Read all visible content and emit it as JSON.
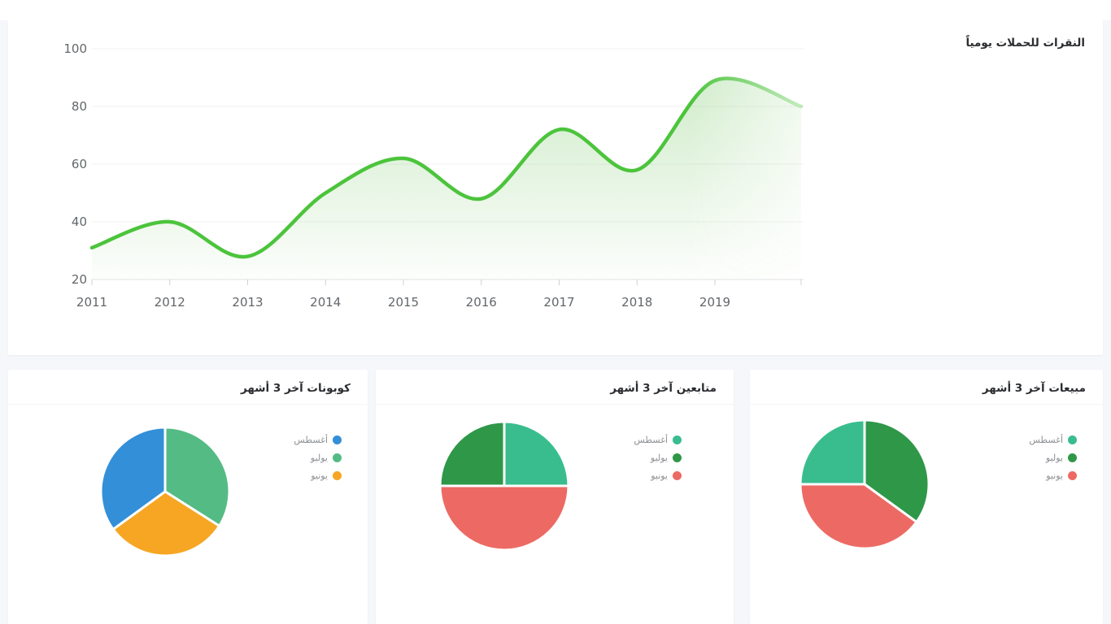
{
  "page": {
    "direction": "rtl",
    "background": "#f6f7fa",
    "card_background": "#ffffff"
  },
  "chart_data": [
    {
      "type": "line",
      "title": "النقرات للحملات يومياً",
      "x": [
        "2011",
        "2012",
        "2013",
        "2014",
        "2015",
        "2016",
        "2017",
        "2018",
        "2019"
      ],
      "values": [
        31,
        40,
        28,
        50,
        62,
        48,
        72,
        58,
        89
      ],
      "unlabeled_end_value": 80,
      "xlabel": "",
      "ylabel": "",
      "ylim": [
        20,
        100
      ],
      "yticks": [
        20,
        40,
        60,
        80,
        100
      ],
      "grid": true,
      "legend": "none",
      "style": {
        "line_color": "#4cc43c",
        "area_fill_top": "rgba(100,192,80,0.30)",
        "area_fill_bottom": "rgba(100,192,80,0.02)",
        "right_edge_fade": true,
        "grid_color": "#f1f2f3",
        "axis_line_color": "#e2e3e5",
        "tick_color": "#cfd1d4",
        "tick_label_color": "#63676b"
      }
    },
    {
      "type": "pie",
      "id": "coupons",
      "title": "كوبونات آخر 3 أشهر",
      "legend_position": "right",
      "legend": [
        {
          "label": "أغسطس",
          "color": "#338fd8"
        },
        {
          "label": "يوليو",
          "color": "#54bb84"
        },
        {
          "label": "يونيو",
          "color": "#f6a623"
        }
      ],
      "slices_clockwise_from_top": [
        {
          "label": "يوليو",
          "value": 34,
          "color": "#54bb84"
        },
        {
          "label": "يونيو",
          "value": 31,
          "color": "#f6a623"
        },
        {
          "label": "أغسطس",
          "value": 35,
          "color": "#338fd8"
        }
      ]
    },
    {
      "type": "pie",
      "id": "followers",
      "title": "متابعين آخر 3 أشهر",
      "legend_position": "right",
      "legend": [
        {
          "label": "أغسطس",
          "color": "#39bd8e"
        },
        {
          "label": "يوليو",
          "color": "#2f9748"
        },
        {
          "label": "يونيو",
          "color": "#ed6a64"
        }
      ],
      "slices_clockwise_from_top": [
        {
          "label": "أغسطس",
          "value": 25,
          "color": "#39bd8e"
        },
        {
          "label": "يونيو",
          "value": 50,
          "color": "#ed6a64"
        },
        {
          "label": "يوليو",
          "value": 25,
          "color": "#2f9748"
        }
      ]
    },
    {
      "type": "pie",
      "id": "sales",
      "title": "مبيعات آخر 3 أشهر",
      "legend_position": "right",
      "legend": [
        {
          "label": "أغسطس",
          "color": "#39bd8e"
        },
        {
          "label": "يوليو",
          "color": "#2f9748"
        },
        {
          "label": "يونيو",
          "color": "#ed6a64"
        }
      ],
      "slices_clockwise_from_top": [
        {
          "label": "يوليو",
          "value": 35,
          "color": "#2f9748"
        },
        {
          "label": "يونيو",
          "value": 40,
          "color": "#ed6a64"
        },
        {
          "label": "أغسطس",
          "value": 25,
          "color": "#39bd8e"
        }
      ]
    }
  ]
}
